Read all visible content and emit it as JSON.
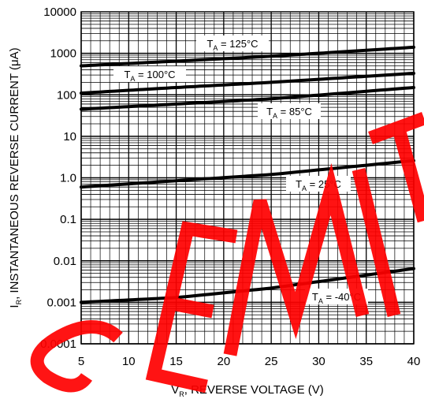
{
  "chart_data": {
    "type": "line",
    "y_scale": "log",
    "xlim": [
      5,
      40
    ],
    "ylim": [
      0.0001,
      10000
    ],
    "x_ticks": [
      "5",
      "10",
      "15",
      "20",
      "25",
      "30",
      "35",
      "40"
    ],
    "y_ticks": [
      "0.0001",
      "0.001",
      "0.01",
      "0.1",
      "1.0",
      "10",
      "100",
      "1000",
      "10000"
    ],
    "xlabel": {
      "main": "V",
      "sub": "R",
      "rest": ", REVERSE VOLTAGE (V)"
    },
    "ylabel": {
      "main": "I",
      "sub": "R",
      "rest": ", INSTANTANEOUS REVERSE CURRENT (μA)"
    },
    "grid": true,
    "series": [
      {
        "name": {
          "main": "T",
          "sub": "A",
          "rest": " = 125°C"
        },
        "x": [
          5,
          15,
          25,
          40
        ],
        "y": [
          500,
          650,
          850,
          1400
        ]
      },
      {
        "name": {
          "main": "T",
          "sub": "A",
          "rest": " = 100°C"
        },
        "x": [
          5,
          15,
          25,
          40
        ],
        "y": [
          110,
          150,
          200,
          330
        ]
      },
      {
        "name": {
          "main": "T",
          "sub": "A",
          "rest": " = 85°C"
        },
        "x": [
          5,
          15,
          25,
          40
        ],
        "y": [
          45,
          60,
          80,
          150
        ]
      },
      {
        "name": {
          "main": "T",
          "sub": "A",
          "rest": " = 25°C"
        },
        "x": [
          5,
          15,
          25,
          40
        ],
        "y": [
          0.6,
          0.85,
          1.2,
          2.6
        ]
      },
      {
        "name": {
          "main": "T",
          "sub": "A",
          "rest": " = -40°C"
        },
        "x": [
          5,
          15,
          25,
          40
        ],
        "y": [
          0.001,
          0.0013,
          0.0022,
          0.0065
        ]
      }
    ]
  },
  "watermark": {
    "text": "SEMIT",
    "color": "#ff0000"
  }
}
